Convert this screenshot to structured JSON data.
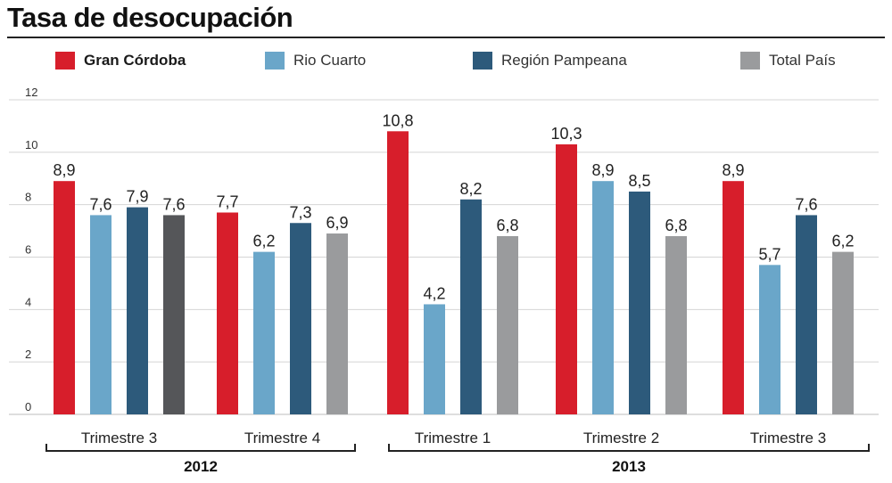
{
  "chart_data": {
    "type": "bar",
    "title": "Tasa de desocupación",
    "ylim": [
      0,
      12
    ],
    "yticks": [
      "0",
      "2",
      "4",
      "6",
      "8",
      "10",
      "12"
    ],
    "grid": true,
    "legend_position": "top",
    "series_names": [
      "Gran Córdoba",
      "Rio Cuarto",
      "Región Pampeana",
      "Total País"
    ],
    "series_colors": [
      "#d71e2b",
      "#6aa6c9",
      "#2d5a7b",
      "#9a9b9d"
    ],
    "groups": [
      {
        "category": "Trimestre 3",
        "year": "2012",
        "values": [
          8.9,
          7.6,
          7.9,
          7.6
        ],
        "labels": [
          "8,9",
          "7,6",
          "7,9",
          "7,6"
        ],
        "colors": [
          "#d71e2b",
          "#6aa6c9",
          "#2d5a7b",
          "#555659"
        ]
      },
      {
        "category": "Trimestre 4",
        "year": "2012",
        "values": [
          7.7,
          6.2,
          7.3,
          6.9
        ],
        "labels": [
          "7,7",
          "6,2",
          "7,3",
          "6,9"
        ],
        "colors": [
          "#d71e2b",
          "#6aa6c9",
          "#2d5a7b",
          "#9a9b9d"
        ]
      },
      {
        "category": "Trimestre 1",
        "year": "2013",
        "values": [
          10.8,
          4.2,
          8.2,
          6.8
        ],
        "labels": [
          "10,8",
          "4,2",
          "8,2",
          "6,8"
        ],
        "colors": [
          "#d71e2b",
          "#6aa6c9",
          "#2d5a7b",
          "#9a9b9d"
        ]
      },
      {
        "category": "Trimestre 2",
        "year": "2013",
        "values": [
          10.3,
          8.9,
          8.5,
          6.8
        ],
        "labels": [
          "10,3",
          "8,9",
          "8,5",
          "6,8"
        ],
        "colors": [
          "#d71e2b",
          "#6aa6c9",
          "#2d5a7b",
          "#9a9b9d"
        ]
      },
      {
        "category": "Trimestre 3",
        "year": "2013",
        "values": [
          8.9,
          5.7,
          7.6,
          6.2
        ],
        "labels": [
          "8,9",
          "5,7",
          "7,6",
          "6,2"
        ],
        "colors": [
          "#d71e2b",
          "#6aa6c9",
          "#2d5a7b",
          "#9a9b9d"
        ]
      }
    ],
    "years": [
      "2012",
      "2013"
    ]
  }
}
